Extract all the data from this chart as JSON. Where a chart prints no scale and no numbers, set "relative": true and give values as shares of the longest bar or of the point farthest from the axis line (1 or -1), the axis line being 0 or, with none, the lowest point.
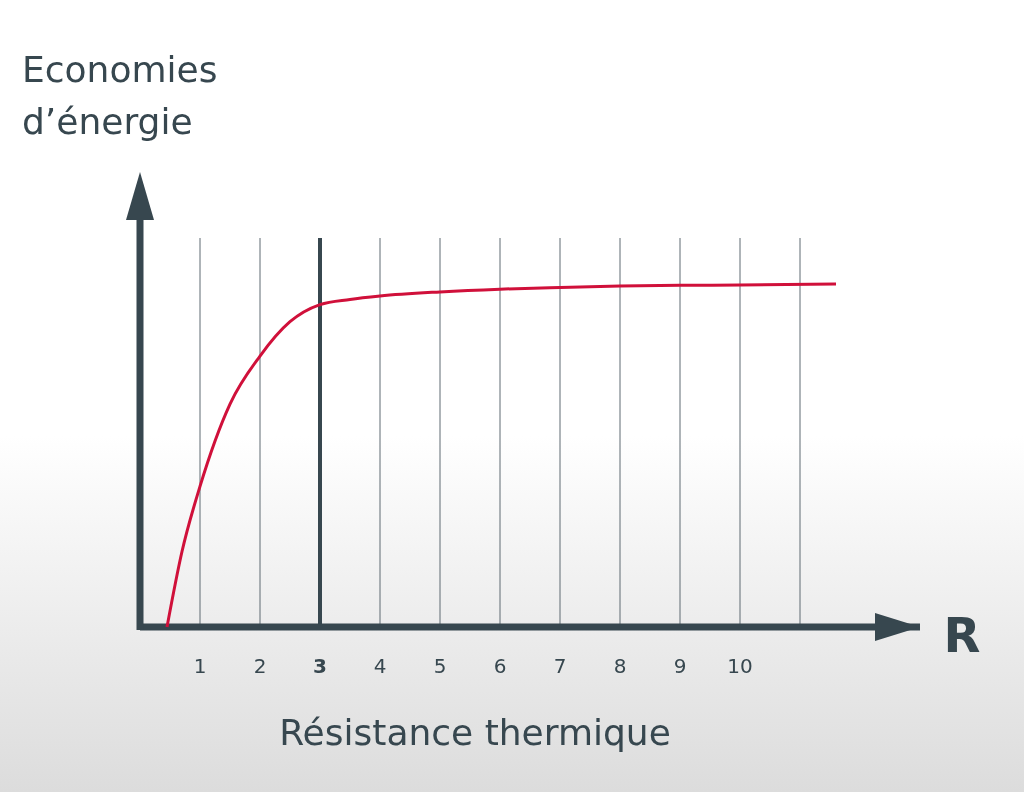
{
  "chart_data": {
    "type": "line",
    "relative": true,
    "xlabel": "Résistance thermique",
    "ylabel": "Economies d’énergie",
    "annotations": [
      "R"
    ],
    "xlim": [
      0,
      13
    ],
    "xticks": [
      1,
      2,
      3,
      4,
      5,
      6,
      7,
      8,
      9,
      10,
      {
        "value": 11,
        "label": null
      }
    ],
    "grid": "x",
    "marker": "none",
    "line_style": "solid",
    "ref_lines": [
      {
        "axis": "x",
        "value": 3,
        "color": "#37474f"
      }
    ],
    "series": [
      {
        "color": "#d0103a",
        "x": [
          0.45,
          0.7,
          1,
          1.5,
          2,
          2.5,
          3,
          3.5,
          4,
          5,
          6,
          7,
          8,
          9,
          10,
          11.6
        ],
        "values": [
          0,
          0.22,
          0.41,
          0.65,
          0.79,
          0.89,
          0.94,
          0.955,
          0.965,
          0.977,
          0.985,
          0.99,
          0.994,
          0.996,
          0.997,
          1
        ]
      }
    ]
  }
}
